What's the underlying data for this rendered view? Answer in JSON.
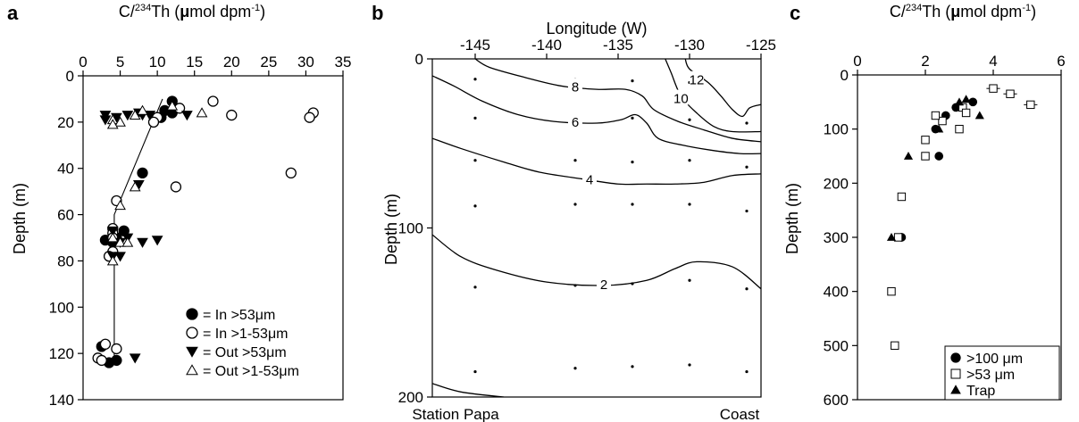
{
  "chart_data": [
    {
      "panel": "a",
      "type": "scatter",
      "xlabel": "C/²³⁴Th (μmol dpm⁻¹)",
      "ylabel": "Depth (m)",
      "xlim": [
        0,
        35
      ],
      "ylim": [
        140,
        0
      ],
      "xticks": [
        0,
        5,
        10,
        15,
        20,
        25,
        30,
        35
      ],
      "yticks": [
        0,
        20,
        40,
        60,
        80,
        100,
        120,
        140
      ],
      "legend_position": "bottom-right",
      "series": [
        {
          "name": "= In >53μm",
          "marker": "filled-circle",
          "points": [
            [
              12,
              11
            ],
            [
              11,
              15
            ],
            [
              12,
              16
            ],
            [
              10.5,
              18
            ],
            [
              8,
              42
            ],
            [
              5.5,
              67
            ],
            [
              4.5,
              70
            ],
            [
              3,
              71
            ],
            [
              4,
              72
            ],
            [
              2.5,
              117
            ],
            [
              4.5,
              123
            ],
            [
              3.5,
              124
            ]
          ]
        },
        {
          "name": "= In >1-53μm",
          "marker": "open-circle",
          "points": [
            [
              17.5,
              11
            ],
            [
              13,
              14
            ],
            [
              31,
              16
            ],
            [
              30.5,
              18
            ],
            [
              20,
              17
            ],
            [
              10,
              18
            ],
            [
              9.5,
              20
            ],
            [
              12.5,
              48
            ],
            [
              28,
              42
            ],
            [
              4.5,
              54
            ],
            [
              4,
              66
            ],
            [
              4,
              68
            ],
            [
              4,
              70
            ],
            [
              4,
              76
            ],
            [
              3.5,
              78
            ],
            [
              3,
              116
            ],
            [
              4.5,
              118
            ],
            [
              2,
              122
            ],
            [
              2.5,
              123
            ]
          ]
        },
        {
          "name": "= Out >53μm",
          "marker": "filled-triangle-down",
          "points": [
            [
              3,
              17
            ],
            [
              3,
              19
            ],
            [
              4.5,
              18
            ],
            [
              6,
              17
            ],
            [
              7.5,
              16
            ],
            [
              8,
              17
            ],
            [
              9,
              17
            ],
            [
              14,
              17
            ],
            [
              7.5,
              47
            ],
            [
              4,
              67
            ],
            [
              6,
              70
            ],
            [
              5,
              72
            ],
            [
              8,
              72
            ],
            [
              10,
              71
            ],
            [
              4,
              78
            ],
            [
              5,
              78
            ],
            [
              7,
              122
            ]
          ]
        },
        {
          "name": "= Out >1-53μm",
          "marker": "open-triangle-up",
          "points": [
            [
              4,
              19
            ],
            [
              5,
              20
            ],
            [
              4,
              21
            ],
            [
              7,
              17
            ],
            [
              8,
              15
            ],
            [
              12,
              13
            ],
            [
              16,
              16
            ],
            [
              5,
              56
            ],
            [
              7,
              48
            ],
            [
              4,
              70
            ],
            [
              5,
              72
            ],
            [
              6,
              72
            ],
            [
              4,
              80
            ]
          ]
        }
      ],
      "fit_line": [
        [
          10.7,
          10
        ],
        [
          4.2,
          60
        ],
        [
          4.2,
          122
        ]
      ]
    },
    {
      "panel": "b",
      "type": "contour",
      "xlabel": "Longitude (W)",
      "ylabel": "Depth (m)",
      "xlim": [
        -148,
        -125
      ],
      "ylim": [
        200,
        0
      ],
      "xticks": [
        -145,
        -140,
        -135,
        -130,
        -125
      ],
      "yticks": [
        0,
        100,
        200
      ],
      "bottom_labels": {
        "left": "Station Papa",
        "right": "Coast"
      },
      "contours": [
        {
          "level": "12",
          "label_at": [
            -129.5,
            12
          ],
          "points": [
            [
              -130.3,
              0
            ],
            [
              -130,
              6
            ],
            [
              -128.7,
              14
            ],
            [
              -127.8,
              22
            ],
            [
              -127,
              30
            ],
            [
              -126.3,
              34
            ],
            [
              -125.8,
              29
            ],
            [
              -125,
              27
            ]
          ]
        },
        {
          "level": "10",
          "label_at": [
            -130.6,
            23
          ],
          "points": [
            [
              -131.7,
              0
            ],
            [
              -131.3,
              8
            ],
            [
              -130.6,
              22
            ],
            [
              -129.5,
              32
            ],
            [
              -128.3,
              40
            ],
            [
              -127,
              43
            ],
            [
              -125,
              43
            ]
          ]
        },
        {
          "level": "8",
          "label_at": [
            -138,
            16
          ],
          "points": [
            [
              -145,
              0
            ],
            [
              -144,
              5
            ],
            [
              -141.5,
              11
            ],
            [
              -139,
              16
            ],
            [
              -136.5,
              18
            ],
            [
              -134.5,
              18
            ],
            [
              -133.3,
              22
            ],
            [
              -132.5,
              30
            ],
            [
              -130.8,
              37
            ],
            [
              -129,
              42
            ],
            [
              -127,
              47
            ],
            [
              -125,
              49
            ]
          ]
        },
        {
          "level": "6",
          "label_at": [
            -138,
            37
          ],
          "points": [
            [
              -148,
              10
            ],
            [
              -146.5,
              16
            ],
            [
              -144.5,
              25
            ],
            [
              -142,
              33
            ],
            [
              -139.5,
              37
            ],
            [
              -136.5,
              38
            ],
            [
              -134.8,
              36
            ],
            [
              -133.8,
              33
            ],
            [
              -133,
              38
            ],
            [
              -132.2,
              47
            ],
            [
              -130.5,
              51
            ],
            [
              -128.5,
              54
            ],
            [
              -126.5,
              56
            ],
            [
              -125,
              56
            ]
          ]
        },
        {
          "level": "4",
          "label_at": [
            -137,
            71
          ],
          "points": [
            [
              -148,
              47
            ],
            [
              -146,
              53
            ],
            [
              -143,
              61
            ],
            [
              -140.5,
              67
            ],
            [
              -137.5,
              71
            ],
            [
              -135,
              74
            ],
            [
              -133,
              74
            ],
            [
              -131,
              74
            ],
            [
              -129,
              73
            ],
            [
              -127,
              69
            ],
            [
              -125,
              68
            ]
          ]
        },
        {
          "level": "2",
          "label_at": [
            -136,
            133
          ],
          "points": [
            [
              -148,
              104
            ],
            [
              -146,
              117
            ],
            [
              -143.5,
              125
            ],
            [
              -140,
              132
            ],
            [
              -136,
              134
            ],
            [
              -133,
              131
            ],
            [
              -131,
              124
            ],
            [
              -129.5,
              120
            ],
            [
              -127,
              123
            ],
            [
              -125,
              136
            ]
          ]
        },
        {
          "level": "",
          "points": [
            [
              -148,
              192
            ],
            [
              -146,
              197
            ],
            [
              -143,
              200
            ]
          ]
        }
      ],
      "stations": [
        {
          "lon": -145,
          "depths": [
            12,
            35,
            60,
            87,
            135,
            185
          ]
        },
        {
          "lon": -138,
          "depths": [
            12,
            37,
            60,
            86,
            134,
            183
          ]
        },
        {
          "lon": -134,
          "depths": [
            13,
            35,
            61,
            86,
            133,
            182
          ]
        },
        {
          "lon": -130,
          "depths": [
            14,
            36,
            60,
            86,
            131,
            181
          ]
        },
        {
          "lon": -126,
          "depths": [
            38,
            64,
            90,
            136,
            185
          ]
        }
      ]
    },
    {
      "panel": "c",
      "type": "scatter",
      "xlabel": "C/²³⁴Th (μmol dpm⁻¹)",
      "ylabel": "Depth (m)",
      "xlim": [
        0,
        6
      ],
      "ylim": [
        600,
        0
      ],
      "xticks": [
        0,
        2,
        4,
        6
      ],
      "yticks": [
        0,
        100,
        200,
        300,
        400,
        500,
        600
      ],
      "legend_position": "bottom-right",
      "series": [
        {
          "name": ">100 μm",
          "marker": "filled-circle",
          "points": [
            [
              3.4,
              50
            ],
            [
              2.9,
              60
            ],
            [
              2.6,
              75
            ],
            [
              2.3,
              100
            ],
            [
              2.4,
              150
            ],
            [
              1.3,
              300
            ]
          ]
        },
        {
          "name": ">53 μm",
          "marker": "open-square",
          "points": [
            [
              4.0,
              25
            ],
            [
              4.5,
              35
            ],
            [
              5.1,
              55
            ],
            [
              3.1,
              60
            ],
            [
              3.2,
              70
            ],
            [
              2.5,
              85
            ],
            [
              2.3,
              75
            ],
            [
              3.0,
              100
            ],
            [
              2.0,
              120
            ],
            [
              2.0,
              150
            ],
            [
              1.3,
              225
            ],
            [
              1.2,
              300
            ],
            [
              1.0,
              400
            ],
            [
              1.1,
              500
            ]
          ],
          "xerr": [
            0.2,
            0.2,
            0.2,
            0.1,
            0.1,
            0,
            0,
            0,
            0,
            0,
            0,
            0,
            0,
            0
          ]
        },
        {
          "name": "Trap",
          "marker": "filled-triangle-up",
          "points": [
            [
              3.0,
              50
            ],
            [
              3.2,
              45
            ],
            [
              3.6,
              75
            ],
            [
              2.4,
              100
            ],
            [
              1.5,
              150
            ],
            [
              1.0,
              300
            ]
          ]
        }
      ]
    }
  ],
  "panels": {
    "a": {
      "letter": "a",
      "xlabel_prefix": "C/",
      "xlabel_sup": "234",
      "xlabel_mid": "Th (",
      "xlabel_mu": "μ",
      "xlabel_unit": "mol dpm",
      "xlabel_exp": "-1",
      "xlabel_end": ")",
      "ylabel": "Depth (m)",
      "legend": [
        "= In >53μm",
        "= In >1-53μm",
        "= Out >53μm",
        "= Out >1-53μm"
      ]
    },
    "b": {
      "letter": "b",
      "xlabel": "Longitude (W)",
      "ylabel": "Depth (m)",
      "left": "Station Papa",
      "right": "Coast"
    },
    "c": {
      "letter": "c",
      "xlabel_prefix": "C/",
      "xlabel_sup": "234",
      "xlabel_mid": "Th (",
      "xlabel_mu": "μ",
      "xlabel_unit": "mol dpm",
      "xlabel_exp": "-1",
      "xlabel_end": ")",
      "ylabel": "Depth (m)",
      "legend": [
        ">100 μm",
        ">53 μm",
        "Trap"
      ]
    }
  }
}
